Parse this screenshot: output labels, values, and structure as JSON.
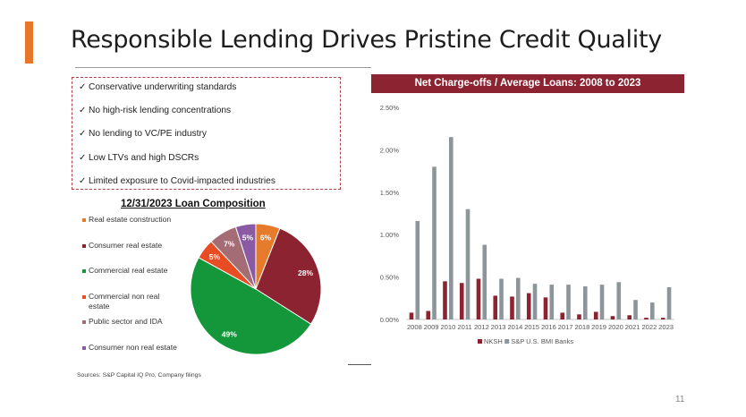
{
  "slide": {
    "title": "Responsible Lending Drives Pristine Credit Quality",
    "page_number": "11",
    "source": "Sources: S&P Capital IQ Pro, Company filings",
    "accent_color": "#e5762a"
  },
  "bullets": [
    "Conservative underwriting standards",
    "No high-risk lending concentrations",
    "No lending to VC/PE industry",
    "Low LTVs and high DSCRs",
    "Limited exposure to Covid-impacted industries"
  ],
  "chart_data": [
    {
      "type": "pie",
      "title": "12/31/2023 Loan Composition",
      "categories": [
        "Real estate construction",
        "Consumer real estate",
        "Commercial real estate",
        "Commercial non real estate",
        "Public sector and IDA",
        "Consumer non real estate"
      ],
      "values": [
        6,
        28,
        49,
        5,
        7,
        5
      ],
      "labels": [
        "6%",
        "28%",
        "49%",
        "5%",
        "7%",
        "5%"
      ],
      "colors": [
        "#e57b2b",
        "#8c2331",
        "#14973a",
        "#e84c22",
        "#a46d76",
        "#8a5aa5"
      ],
      "legend_position": "left"
    },
    {
      "type": "bar",
      "title": "Net Charge-offs / Average Loans: 2008 to 2023",
      "categories": [
        "2008",
        "2009",
        "2010",
        "2011",
        "2012",
        "2013",
        "2014",
        "2015",
        "2016",
        "2017",
        "2018",
        "2019",
        "2020",
        "2021",
        "2022",
        "2023"
      ],
      "series": [
        {
          "name": "NKSH",
          "color": "#8c2331",
          "values": [
            0.08,
            0.1,
            0.45,
            0.43,
            0.48,
            0.28,
            0.27,
            0.31,
            0.26,
            0.08,
            0.06,
            0.09,
            0.04,
            0.05,
            0.02,
            0.02
          ]
        },
        {
          "name": "S&P U.S. BMI Banks",
          "color": "#8c959a",
          "values": [
            1.16,
            1.8,
            2.15,
            1.3,
            0.88,
            0.48,
            0.49,
            0.42,
            0.41,
            0.41,
            0.39,
            0.41,
            0.44,
            0.23,
            0.2,
            0.38
          ]
        }
      ],
      "yticks": [
        "0.00%",
        "0.50%",
        "1.00%",
        "1.50%",
        "2.00%",
        "2.50%"
      ],
      "ylim": [
        0,
        2.5
      ],
      "grid": false,
      "legend_position": "bottom"
    }
  ]
}
